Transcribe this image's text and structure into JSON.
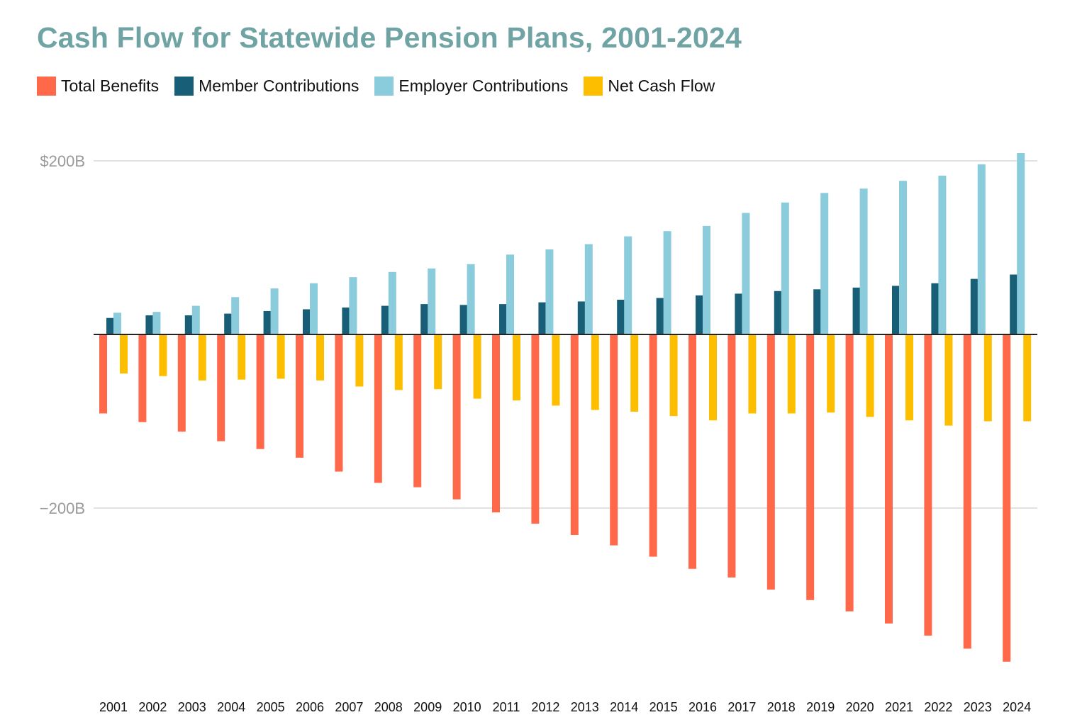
{
  "chart_data": {
    "type": "bar",
    "title": "Cash Flow for Statewide Pension Plans, 2001-2024",
    "xlabel": "",
    "ylabel": "",
    "ylim": [
      -400,
      210
    ],
    "y_ticks": [
      {
        "value": 200,
        "label": "$200B"
      },
      {
        "value": -200,
        "label": "−200B"
      }
    ],
    "grid": true,
    "legend_position": "top-left",
    "categories": [
      "2001",
      "2002",
      "2003",
      "2004",
      "2005",
      "2006",
      "2007",
      "2008",
      "2009",
      "2010",
      "2011",
      "2012",
      "2013",
      "2014",
      "2015",
      "2016",
      "2017",
      "2018",
      "2019",
      "2020",
      "2021",
      "2022",
      "2023",
      "2024"
    ],
    "series": [
      {
        "name": "Total Benefits",
        "color": "#ff6849",
        "values": [
          -91,
          -101,
          -112,
          -123,
          -132,
          -142,
          -158,
          -171,
          -176,
          -190,
          -205,
          -218,
          -231,
          -243,
          -256,
          -270,
          -280,
          -294,
          -306,
          -319,
          -333,
          -347,
          -362,
          -377
        ]
      },
      {
        "name": "Member Contributions",
        "color": "#175e76",
        "values": [
          19,
          22,
          22,
          24,
          27,
          29,
          31,
          33,
          35,
          34,
          35,
          37,
          38,
          40,
          42,
          45,
          47,
          50,
          52,
          54,
          56,
          59,
          64,
          69
        ]
      },
      {
        "name": "Employer Contributions",
        "color": "#8acbdc",
        "values": [
          25,
          26,
          33,
          43,
          53,
          59,
          66,
          72,
          76,
          81,
          92,
          98,
          104,
          113,
          119,
          125,
          140,
          152,
          163,
          168,
          177,
          183,
          196,
          209
        ]
      },
      {
        "name": "Net Cash Flow",
        "color": "#fdbe00",
        "values": [
          -45,
          -48,
          -53,
          -52,
          -51,
          -53,
          -60,
          -64,
          -63,
          -74,
          -76,
          -82,
          -87,
          -89,
          -94,
          -99,
          -91,
          -91,
          -90,
          -95,
          -99,
          -105,
          -100,
          -100
        ]
      }
    ]
  }
}
